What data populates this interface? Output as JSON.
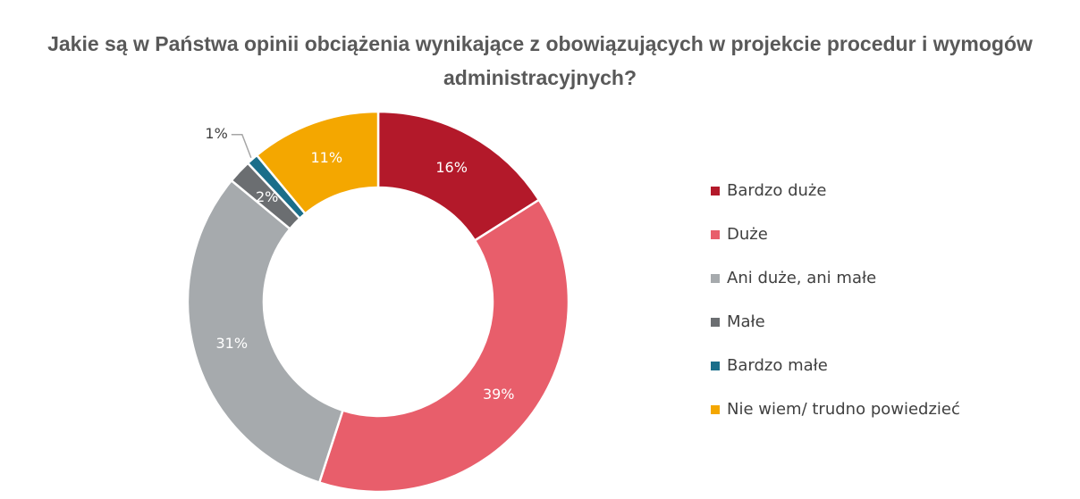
{
  "chart_data": {
    "type": "donut",
    "title": "Jakie są w Państwa opinii obciążenia wynikające z obowiązujących w projekcie procedur i wymogów administracyjnych?",
    "categories": [
      "Bardzo duże",
      "Duże",
      "Ani duże, ani małe",
      "Małe",
      "Bardzo małe",
      "Nie wiem/ trudno powiedzieć"
    ],
    "values": [
      16,
      39,
      31,
      2,
      1,
      11
    ],
    "value_labels": [
      "16%",
      "39%",
      "31%",
      "2%",
      "1%",
      "11%"
    ],
    "colors": [
      "#b3192a",
      "#e85e6b",
      "#a6aaad",
      "#6b6e71",
      "#1a6e8a",
      "#f4a700"
    ],
    "legend": "right"
  }
}
